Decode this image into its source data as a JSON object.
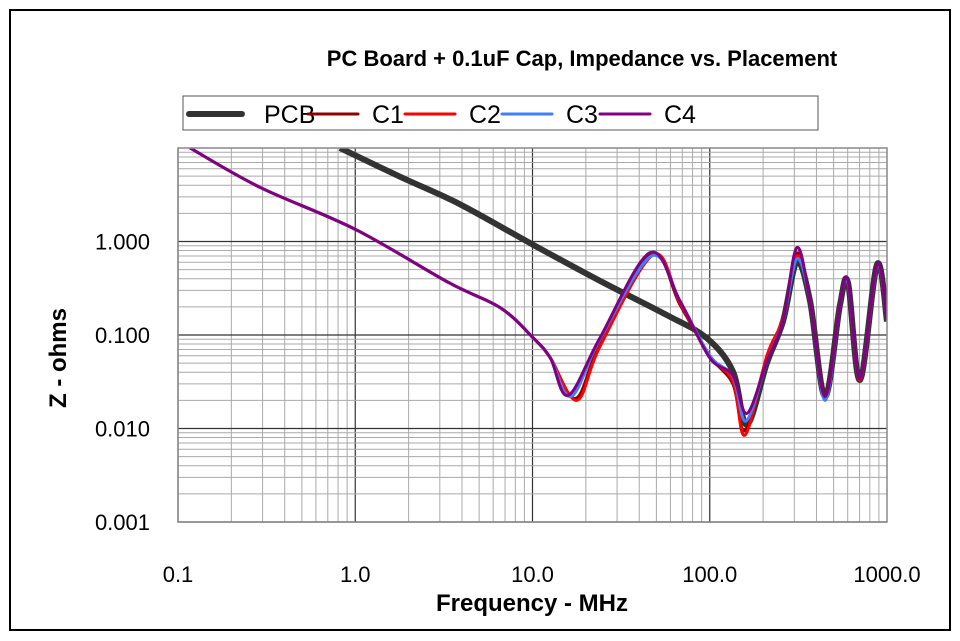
{
  "chart_data": {
    "type": "line",
    "title": "PC Board + 0.1uF Cap,  Impedance vs. Placement",
    "xlabel": "Frequency - MHz",
    "ylabel": "Z - ohms",
    "xscale": "log",
    "yscale": "log",
    "xlim": [
      0.1,
      1000
    ],
    "ylim": [
      0.001,
      10
    ],
    "xticks": [
      "0.1",
      "1.0",
      "10.0",
      "100.0",
      "1000.0"
    ],
    "yticks": [
      "0.001",
      "0.010",
      "0.100",
      "1.000"
    ],
    "grid": true,
    "legend": "top",
    "series": [
      {
        "name": "PCB",
        "color": "#333333",
        "x": [
          0.82,
          1.8,
          3.9,
          10,
          24,
          57,
          96,
          135,
          162,
          210,
          259,
          310,
          368,
          447,
          543,
          603,
          704,
          879,
          1000
        ],
        "y": [
          10,
          4.9,
          2.5,
          0.93,
          0.38,
          0.164,
          0.093,
          0.041,
          0.011,
          0.05,
          0.14,
          0.6,
          0.23,
          0.022,
          0.21,
          0.36,
          0.033,
          0.57,
          0.14
        ]
      },
      {
        "name": "C1",
        "color": "#8b0000",
        "x": [
          0.117,
          0.29,
          1,
          3.4,
          6.6,
          10.1,
          12.6,
          17.5,
          24,
          47,
          68,
          100,
          135,
          158,
          210,
          259,
          310,
          368,
          447,
          543,
          603,
          704,
          879,
          1000
        ],
        "y": [
          10,
          3.8,
          1.35,
          0.36,
          0.195,
          0.093,
          0.057,
          0.021,
          0.08,
          0.74,
          0.21,
          0.06,
          0.03,
          0.0095,
          0.055,
          0.14,
          0.75,
          0.23,
          0.022,
          0.21,
          0.36,
          0.033,
          0.55,
          0.14
        ]
      },
      {
        "name": "C2",
        "color": "#ff0000",
        "x": [
          0.117,
          0.29,
          1,
          3.4,
          6.6,
          10.1,
          12.6,
          17.8,
          24,
          48,
          68,
          100,
          135,
          158,
          210,
          259,
          310,
          368,
          447,
          543,
          603,
          704,
          879,
          1000
        ],
        "y": [
          10,
          3.8,
          1.35,
          0.36,
          0.195,
          0.093,
          0.057,
          0.02,
          0.075,
          0.72,
          0.22,
          0.06,
          0.032,
          0.0085,
          0.06,
          0.15,
          0.7,
          0.23,
          0.022,
          0.21,
          0.36,
          0.033,
          0.55,
          0.14
        ]
      },
      {
        "name": "C3",
        "color": "#3f7fff",
        "x": [
          0.117,
          0.29,
          1,
          3.4,
          6.6,
          10.1,
          12.6,
          16.5,
          24,
          47,
          68,
          100,
          135,
          160,
          210,
          259,
          310,
          368,
          447,
          543,
          603,
          704,
          879,
          1000
        ],
        "y": [
          10,
          3.8,
          1.35,
          0.36,
          0.195,
          0.093,
          0.057,
          0.022,
          0.09,
          0.7,
          0.23,
          0.06,
          0.036,
          0.012,
          0.052,
          0.14,
          0.65,
          0.23,
          0.02,
          0.21,
          0.36,
          0.034,
          0.55,
          0.14
        ]
      },
      {
        "name": "C4",
        "color": "#800080",
        "x": [
          0.117,
          0.29,
          1,
          3.4,
          6.6,
          10.1,
          12.6,
          15.9,
          24,
          46,
          68,
          100,
          135,
          162,
          210,
          259,
          310,
          368,
          447,
          543,
          603,
          704,
          879,
          1000
        ],
        "y": [
          10,
          3.8,
          1.35,
          0.36,
          0.195,
          0.093,
          0.057,
          0.0226,
          0.093,
          0.76,
          0.23,
          0.057,
          0.037,
          0.0145,
          0.052,
          0.141,
          0.86,
          0.23,
          0.022,
          0.21,
          0.38,
          0.034,
          0.57,
          0.14
        ]
      }
    ]
  }
}
